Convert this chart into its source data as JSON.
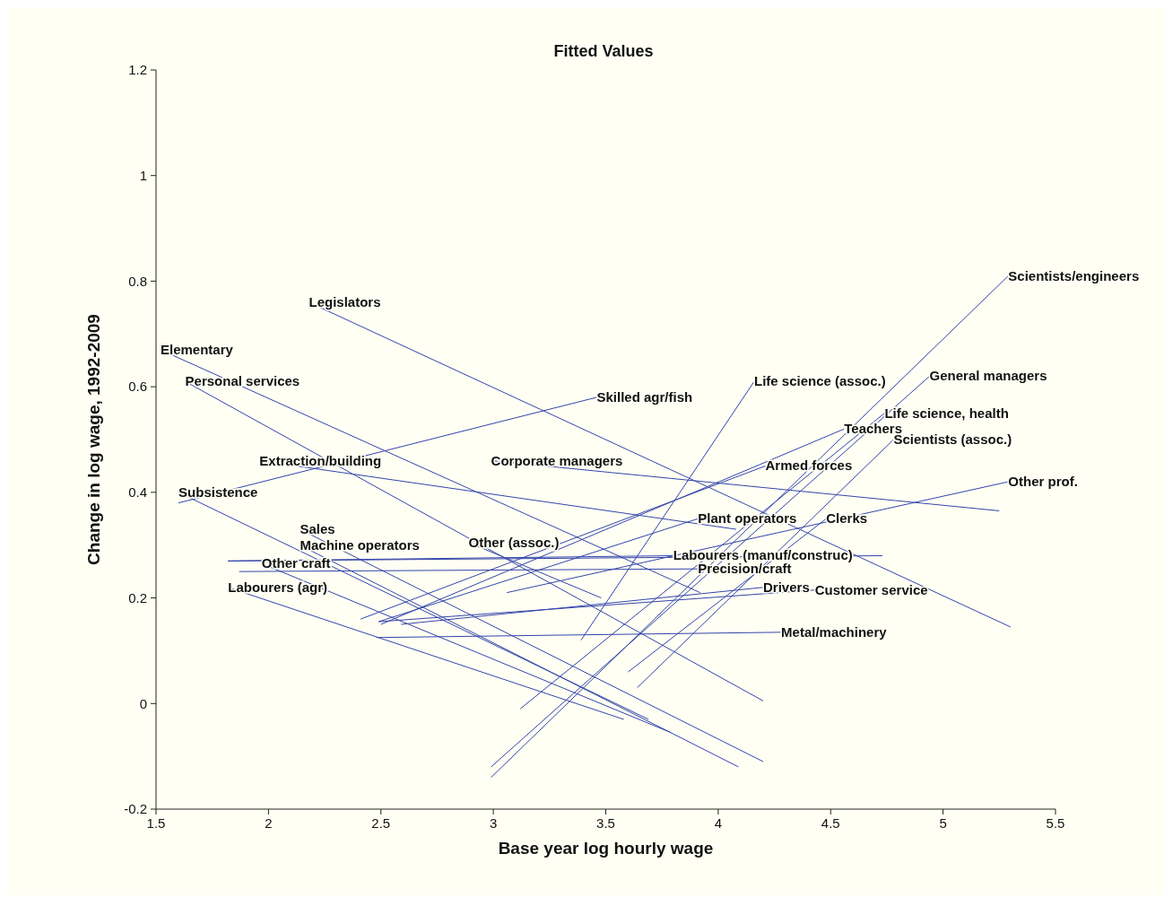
{
  "chart_data": {
    "type": "line",
    "title": "Fitted Values",
    "xlabel": "Base year log hourly wage",
    "ylabel": "Change in log wage, 1992-2009",
    "xlim": [
      1.5,
      5.5
    ],
    "xticks": [
      1.5,
      2,
      2.5,
      3,
      3.5,
      4,
      4.5,
      5,
      5.5
    ],
    "ylim": [
      -0.2,
      1.2
    ],
    "yticks": [
      -0.2,
      0,
      0.2,
      0.4,
      0.6,
      0.8,
      1,
      1.2
    ],
    "grid": false,
    "legend": false,
    "marker": "none",
    "line_style": "solid",
    "series": [
      {
        "name": "Scientists/engineers",
        "color": "#3344aa",
        "x": [
          5.29,
          2.99
        ],
        "values": [
          0.81,
          -0.14
        ]
      },
      {
        "name": "General managers",
        "color": "#3344aa",
        "x": [
          4.94,
          2.99
        ],
        "values": [
          0.62,
          -0.12
        ]
      },
      {
        "name": "Life science, health",
        "color": "#3344aa",
        "x": [
          4.74,
          3.12
        ],
        "values": [
          0.55,
          -0.01
        ]
      },
      {
        "name": "Teachers",
        "color": "#3344aa",
        "x": [
          4.56,
          2.5
        ],
        "values": [
          0.52,
          0.15
        ]
      },
      {
        "name": "Scientists (assoc.)",
        "color": "#3344aa",
        "x": [
          4.78,
          3.64
        ],
        "values": [
          0.5,
          0.03
        ]
      },
      {
        "name": "Life science (assoc.)",
        "color": "#3344aa",
        "x": [
          4.16,
          3.39
        ],
        "values": [
          0.61,
          0.12
        ]
      },
      {
        "name": "Armed forces",
        "color": "#3344aa",
        "x": [
          4.21,
          2.41
        ],
        "values": [
          0.45,
          0.16
        ]
      },
      {
        "name": "Other prof.",
        "color": "#3344aa",
        "x": [
          5.29,
          3.06
        ],
        "values": [
          0.42,
          0.21
        ]
      },
      {
        "name": "Clerks",
        "color": "#3344aa",
        "x": [
          4.48,
          3.6
        ],
        "values": [
          0.35,
          0.06
        ]
      },
      {
        "name": "Corporate managers",
        "color": "#3344aa",
        "x": [
          2.99,
          5.25
        ],
        "values": [
          0.46,
          0.365
        ]
      },
      {
        "name": "Extraction/building",
        "color": "#3344aa",
        "x": [
          1.96,
          4.08
        ],
        "values": [
          0.46,
          0.33
        ]
      },
      {
        "name": "Skilled agr/fish",
        "color": "#3344aa",
        "x": [
          3.46,
          1.6
        ],
        "values": [
          0.58,
          0.38
        ]
      },
      {
        "name": "Subsistence",
        "color": "#3344aa",
        "x": [
          1.6,
          3.69
        ],
        "values": [
          0.4,
          -0.03
        ]
      },
      {
        "name": "Legislators",
        "color": "#3344aa",
        "x": [
          2.18,
          5.3
        ],
        "values": [
          0.76,
          0.145
        ]
      },
      {
        "name": "Elementary",
        "color": "#3344aa",
        "x": [
          1.52,
          3.92
        ],
        "values": [
          0.67,
          0.21
        ]
      },
      {
        "name": "Personal services",
        "color": "#3344aa",
        "x": [
          1.63,
          4.2
        ],
        "values": [
          0.61,
          0.005
        ]
      },
      {
        "name": "Sales",
        "color": "#3344aa",
        "x": [
          2.14,
          4.2
        ],
        "values": [
          0.33,
          -0.11
        ]
      },
      {
        "name": "Machine operators",
        "color": "#3344aa",
        "x": [
          2.14,
          4.09
        ],
        "values": [
          0.3,
          -0.12
        ]
      },
      {
        "name": "Other craft",
        "color": "#3344aa",
        "x": [
          1.97,
          3.79
        ],
        "values": [
          0.265,
          -0.055
        ]
      },
      {
        "name": "Labourers (agr)",
        "color": "#3344aa",
        "x": [
          1.82,
          3.58
        ],
        "values": [
          0.22,
          -0.03
        ]
      },
      {
        "name": "Other (assoc.)",
        "color": "#3344aa",
        "x": [
          2.89,
          3.48
        ],
        "values": [
          0.305,
          0.2
        ]
      },
      {
        "name": "Plant operators",
        "color": "#3344aa",
        "x": [
          3.91,
          2.49
        ],
        "values": [
          0.35,
          0.155
        ]
      },
      {
        "name": "Labourers (manuf/construc)",
        "color": "#3344aa",
        "x": [
          3.8,
          1.82,
          4.73
        ],
        "values": [
          0.28,
          0.27,
          0.28
        ]
      },
      {
        "name": "Precision/craft",
        "color": "#3344aa",
        "x": [
          3.91,
          1.87
        ],
        "values": [
          0.255,
          0.25
        ]
      },
      {
        "name": "Drivers",
        "color": "#3344aa",
        "x": [
          4.2,
          2.59
        ],
        "values": [
          0.22,
          0.15
        ]
      },
      {
        "name": "Customer service",
        "color": "#3344aa",
        "x": [
          4.43,
          2.49
        ],
        "values": [
          0.215,
          0.155
        ]
      },
      {
        "name": "Metal/machinery",
        "color": "#3344aa",
        "x": [
          4.28,
          2.48
        ],
        "values": [
          0.135,
          0.125
        ]
      }
    ]
  }
}
